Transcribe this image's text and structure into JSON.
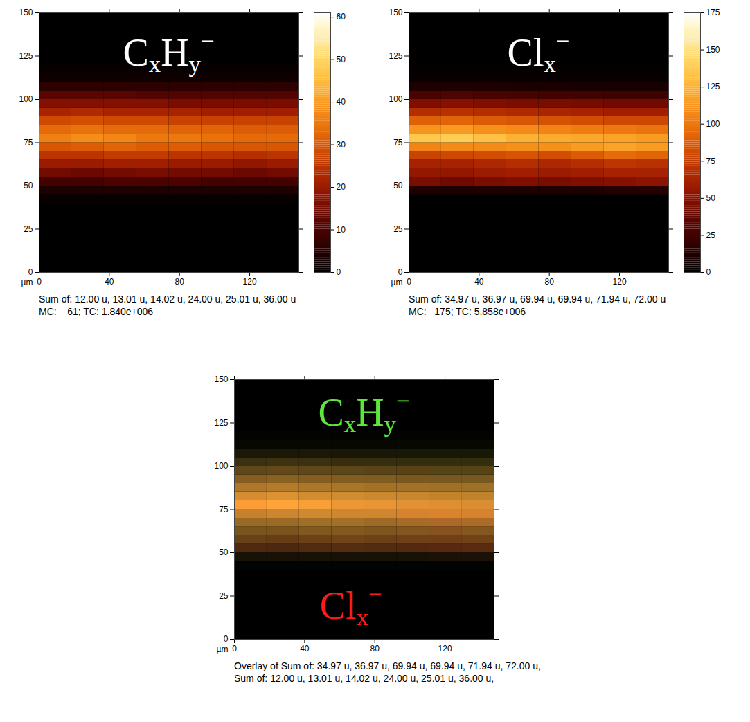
{
  "chart_data": [
    {
      "type": "heatmap",
      "title": "CxHy−",
      "caption": [
        "Sum of: 12.00 u, 13.01 u, 14.02 u, 24.00 u, 25.01 u, 36.00 u",
        "MC:    61; TC: 1.840e+006"
      ],
      "x_label": "µm",
      "xlim": [
        0,
        148
      ],
      "xticks": [
        0,
        40,
        80,
        120
      ],
      "ylim": [
        0,
        150
      ],
      "yticks": [
        0,
        25,
        50,
        75,
        100,
        125,
        150
      ],
      "x_edges": [
        0,
        18.5,
        37,
        55.5,
        74,
        92.5,
        111,
        129.5,
        148
      ],
      "y_edges": [
        0,
        40,
        45,
        50,
        55,
        60,
        65,
        70,
        75,
        80,
        85,
        90,
        95,
        100,
        105,
        110,
        115,
        120,
        150
      ],
      "cells": [
        [
          0,
          0,
          0,
          0,
          0,
          0,
          0,
          0
        ],
        [
          1,
          1,
          1,
          1,
          1,
          1,
          1,
          1
        ],
        [
          4,
          4,
          4,
          4,
          4,
          4,
          4,
          4
        ],
        [
          9,
          9,
          10,
          10,
          10,
          9,
          9,
          9
        ],
        [
          15,
          14,
          15,
          16,
          15,
          15,
          14,
          15
        ],
        [
          20,
          20,
          21,
          21,
          20,
          20,
          19,
          20
        ],
        [
          25,
          25,
          26,
          26,
          25,
          25,
          24,
          25
        ],
        [
          30,
          31,
          32,
          31,
          31,
          30,
          30,
          30
        ],
        [
          36,
          38,
          37,
          35,
          35,
          34,
          33,
          33
        ],
        [
          33,
          34,
          33,
          33,
          32,
          32,
          31,
          31
        ],
        [
          28,
          29,
          28,
          28,
          27,
          27,
          27,
          27
        ],
        [
          22,
          23,
          22,
          22,
          22,
          21,
          21,
          21
        ],
        [
          17,
          17,
          17,
          17,
          16,
          16,
          16,
          16
        ],
        [
          12,
          12,
          12,
          11,
          11,
          11,
          11,
          11
        ],
        [
          6,
          6,
          6,
          6,
          6,
          6,
          6,
          6
        ],
        [
          2,
          2,
          2,
          2,
          2,
          2,
          2,
          2
        ],
        [
          1,
          1,
          1,
          1,
          1,
          1,
          1,
          1
        ],
        [
          0,
          0,
          0,
          0,
          0,
          0,
          0,
          0
        ]
      ],
      "colorbar": {
        "range": [
          0,
          61
        ],
        "ticks": [
          0,
          10,
          20,
          30,
          40,
          50,
          60
        ]
      }
    },
    {
      "type": "heatmap",
      "title": "Clx−",
      "caption": [
        "Sum of: 34.97 u, 36.97 u, 69.94 u, 69.94 u, 71.94 u, 72.00 u",
        "MC:   175; TC: 5.858e+006"
      ],
      "x_label": "µm",
      "xlim": [
        0,
        148
      ],
      "xticks": [
        0,
        40,
        80,
        120
      ],
      "ylim": [
        0,
        150
      ],
      "yticks": [
        0,
        25,
        50,
        75,
        100,
        125,
        150
      ],
      "x_edges": [
        0,
        18.5,
        37,
        55.5,
        74,
        92.5,
        111,
        129.5,
        148
      ],
      "y_edges": [
        0,
        40,
        45,
        50,
        55,
        60,
        65,
        70,
        75,
        80,
        85,
        90,
        95,
        100,
        105,
        110,
        115,
        120,
        150
      ],
      "cells": [
        [
          0,
          0,
          0,
          0,
          0,
          0,
          0,
          0
        ],
        [
          0,
          0,
          0,
          0,
          0,
          0,
          0,
          0
        ],
        [
          12,
          12,
          12,
          12,
          12,
          12,
          14,
          14
        ],
        [
          45,
          42,
          45,
          48,
          45,
          48,
          50,
          52
        ],
        [
          55,
          55,
          58,
          60,
          58,
          60,
          62,
          62
        ],
        [
          62,
          62,
          65,
          68,
          65,
          68,
          72,
          70
        ],
        [
          78,
          80,
          82,
          85,
          82,
          88,
          95,
          92
        ],
        [
          105,
          108,
          108,
          110,
          110,
          115,
          118,
          115
        ],
        [
          135,
          138,
          132,
          125,
          122,
          120,
          118,
          115
        ],
        [
          112,
          115,
          110,
          108,
          105,
          102,
          100,
          98
        ],
        [
          90,
          92,
          88,
          86,
          84,
          82,
          80,
          80
        ],
        [
          68,
          70,
          68,
          66,
          64,
          62,
          60,
          60
        ],
        [
          48,
          50,
          48,
          46,
          45,
          44,
          42,
          42
        ],
        [
          28,
          30,
          28,
          27,
          26,
          25,
          24,
          24
        ],
        [
          12,
          12,
          12,
          11,
          11,
          10,
          10,
          10
        ],
        [
          3,
          3,
          3,
          3,
          3,
          3,
          3,
          3
        ],
        [
          1,
          1,
          1,
          1,
          1,
          1,
          1,
          1
        ],
        [
          0,
          0,
          0,
          0,
          0,
          0,
          0,
          0
        ]
      ],
      "colorbar": {
        "range": [
          0,
          175
        ],
        "ticks": [
          0,
          25,
          50,
          75,
          100,
          125,
          150,
          175
        ]
      }
    },
    {
      "type": "overlay",
      "caption": [
        "Overlay of Sum of: 34.97 u, 36.97 u, 69.94 u, 69.94 u, 71.94 u, 72.00 u, Sum of: 12.00 u, 13.01 u, 14.02 u, 24.00 u, 25.01 u, 36.00 u,"
      ],
      "x_label": "µm",
      "xlim": [
        0,
        148
      ],
      "xticks": [
        0,
        40,
        80,
        120
      ],
      "ylim": [
        0,
        150
      ],
      "yticks": [
        0,
        25,
        50,
        75,
        100,
        125,
        150
      ],
      "series": [
        {
          "name": "CxHy−",
          "color": "#5ee63c"
        },
        {
          "name": "Clx−",
          "color": "#ff1a1a"
        }
      ]
    }
  ]
}
